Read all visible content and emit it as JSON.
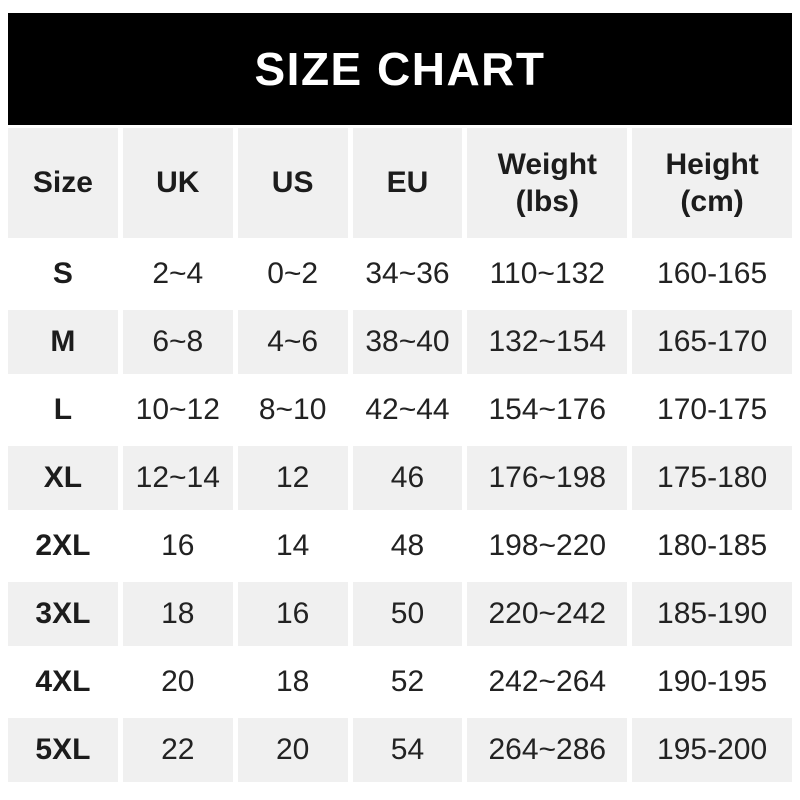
{
  "banner": {
    "title": "SIZE CHART"
  },
  "table": {
    "headers": [
      "Size",
      "UK",
      "US",
      "EU",
      "Weight\n(lbs)",
      "Height\n(cm)"
    ],
    "rows": [
      {
        "size": "S",
        "uk": "2~4",
        "us": "0~2",
        "eu": "34~36",
        "weight": "110~132",
        "height": "160-165"
      },
      {
        "size": "M",
        "uk": "6~8",
        "us": "4~6",
        "eu": "38~40",
        "weight": "132~154",
        "height": "165-170"
      },
      {
        "size": "L",
        "uk": "10~12",
        "us": "8~10",
        "eu": "42~44",
        "weight": "154~176",
        "height": "170-175"
      },
      {
        "size": "XL",
        "uk": "12~14",
        "us": "12",
        "eu": "46",
        "weight": "176~198",
        "height": "175-180"
      },
      {
        "size": "2XL",
        "uk": "16",
        "us": "14",
        "eu": "48",
        "weight": "198~220",
        "height": "180-185"
      },
      {
        "size": "3XL",
        "uk": "18",
        "us": "16",
        "eu": "50",
        "weight": "220~242",
        "height": "185-190"
      },
      {
        "size": "4XL",
        "uk": "20",
        "us": "18",
        "eu": "52",
        "weight": "242~264",
        "height": "190-195"
      },
      {
        "size": "5XL",
        "uk": "22",
        "us": "20",
        "eu": "54",
        "weight": "264~286",
        "height": "195-200"
      }
    ]
  },
  "colors": {
    "banner_bg": "#000000",
    "banner_text": "#ffffff",
    "row_alt_bg": "#f0f0f0",
    "row_bg": "#ffffff",
    "text": "#222222"
  },
  "chart_data": {
    "type": "table",
    "title": "SIZE CHART",
    "columns": [
      "Size",
      "UK",
      "US",
      "EU",
      "Weight (lbs)",
      "Height (cm)"
    ],
    "rows": [
      [
        "S",
        "2~4",
        "0~2",
        "34~36",
        "110~132",
        "160-165"
      ],
      [
        "M",
        "6~8",
        "4~6",
        "38~40",
        "132~154",
        "165-170"
      ],
      [
        "L",
        "10~12",
        "8~10",
        "42~44",
        "154~176",
        "170-175"
      ],
      [
        "XL",
        "12~14",
        "12",
        "46",
        "176~198",
        "175-180"
      ],
      [
        "2XL",
        "16",
        "14",
        "48",
        "198~220",
        "180-185"
      ],
      [
        "3XL",
        "18",
        "16",
        "50",
        "220~242",
        "185-190"
      ],
      [
        "4XL",
        "20",
        "18",
        "52",
        "242~264",
        "190-195"
      ],
      [
        "5XL",
        "22",
        "20",
        "54",
        "264~286",
        "195-200"
      ]
    ]
  }
}
